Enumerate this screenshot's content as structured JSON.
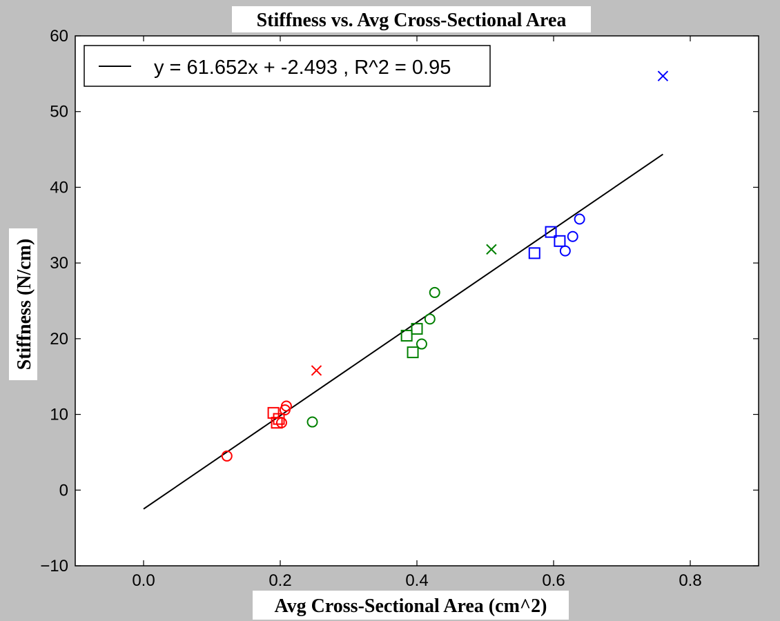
{
  "chart_data": {
    "type": "scatter",
    "title": "Stiffness vs. Avg Cross-Sectional Area",
    "xlabel": "Avg Cross-Sectional Area (cm^2)",
    "ylabel": "Stiffness (N/cm)",
    "xlim": [
      -0.1,
      0.9
    ],
    "ylim": [
      -10,
      60
    ],
    "xticks": [
      0.0,
      0.2,
      0.4,
      0.6,
      0.8
    ],
    "xtick_labels": [
      "0.0",
      "0.2",
      "0.4",
      "0.6",
      "0.8"
    ],
    "yticks": [
      -10,
      0,
      10,
      20,
      30,
      40,
      50,
      60
    ],
    "ytick_labels": [
      "−10",
      "0",
      "10",
      "20",
      "30",
      "40",
      "50",
      "60"
    ],
    "grid": false,
    "legend": {
      "placement": "top-left",
      "entries": [
        "y = 61.652x + -2.493 , R^2 = 0.95"
      ]
    },
    "fit_line": {
      "label": "y = 61.652x + -2.493 , R^2 = 0.95",
      "slope": 61.652,
      "intercept": -2.493,
      "x_range": [
        0.0,
        0.76
      ],
      "color": "#000000"
    },
    "series": [
      {
        "color": "#ff0000",
        "circles": [
          [
            0.122,
            4.5
          ],
          [
            0.202,
            8.9
          ],
          [
            0.207,
            10.6
          ],
          [
            0.209,
            11.1
          ]
        ],
        "squares": [
          [
            0.19,
            10.2
          ],
          [
            0.195,
            8.9
          ],
          [
            0.198,
            9.4
          ]
        ],
        "crosses": [
          [
            0.253,
            15.8
          ]
        ]
      },
      {
        "color": "#008000",
        "circles": [
          [
            0.247,
            9.0
          ],
          [
            0.407,
            19.3
          ],
          [
            0.419,
            22.6
          ],
          [
            0.426,
            26.1
          ]
        ],
        "squares": [
          [
            0.385,
            20.4
          ],
          [
            0.394,
            18.2
          ],
          [
            0.4,
            21.3
          ]
        ],
        "crosses": [
          [
            0.509,
            31.8
          ]
        ]
      },
      {
        "color": "#0000ff",
        "circles": [
          [
            0.617,
            31.6
          ],
          [
            0.628,
            33.5
          ],
          [
            0.638,
            35.8
          ]
        ],
        "squares": [
          [
            0.572,
            31.3
          ],
          [
            0.596,
            34.1
          ],
          [
            0.609,
            32.9
          ]
        ],
        "crosses": [
          [
            0.76,
            54.7
          ]
        ]
      }
    ]
  }
}
